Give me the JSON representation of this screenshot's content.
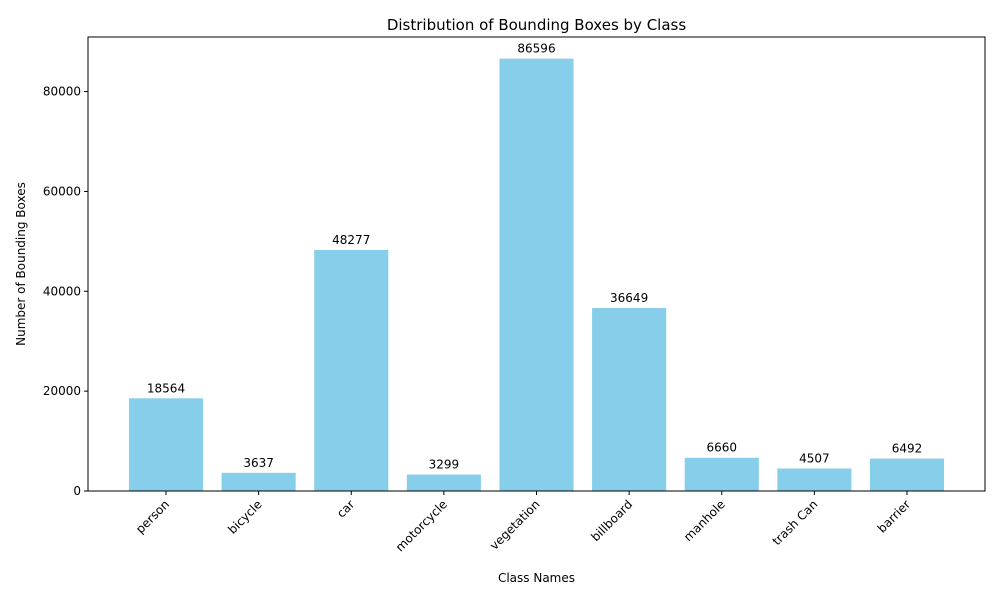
{
  "chart_data": {
    "type": "bar",
    "title": "Distribution of Bounding Boxes by Class",
    "xlabel": "Class Names",
    "ylabel": "Number of Bounding Boxes",
    "categories": [
      "person",
      "bicycle",
      "car",
      "motorcycle",
      "vegetation",
      "billboard",
      "manhole",
      "trash Can",
      "barrier"
    ],
    "values": [
      18564,
      3637,
      48277,
      3299,
      86596,
      36649,
      6660,
      4507,
      6492
    ],
    "data_labels": [
      "18564",
      "3637",
      "48277",
      "3299",
      "86596",
      "36649",
      "6660",
      "4507",
      "6492"
    ],
    "ylim": [
      0,
      90930
    ],
    "yticks": [
      0,
      20000,
      40000,
      60000,
      80000
    ],
    "ytick_labels": [
      "0",
      "20000",
      "40000",
      "60000",
      "80000"
    ],
    "bar_color": "#87ceeb",
    "grid": false,
    "legend": "none"
  }
}
